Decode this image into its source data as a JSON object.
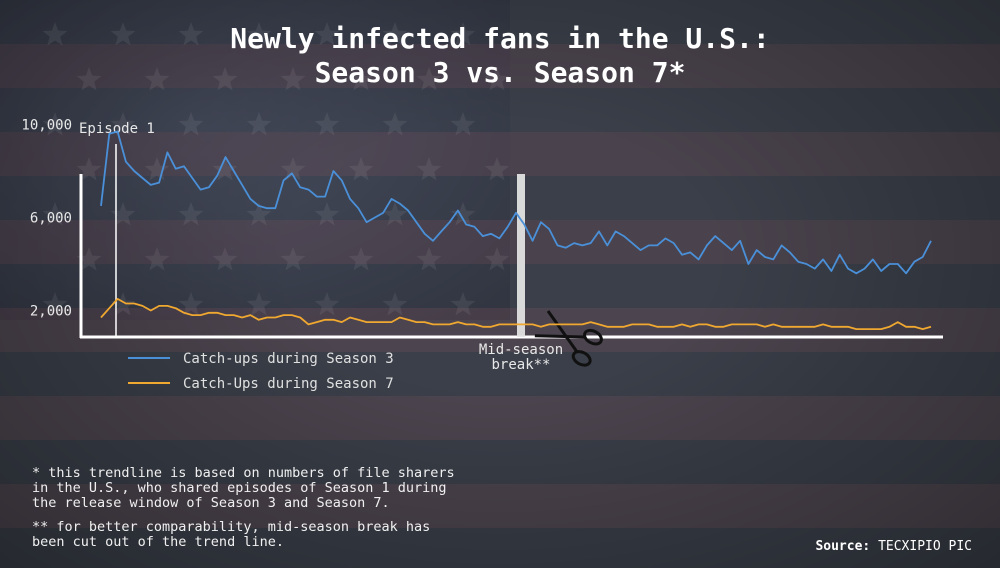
{
  "title_line1": "Newly infected fans in the U.S.:",
  "title_line2": "Season 3 vs. Season 7*",
  "chart_data": {
    "type": "line",
    "y_ticks": [
      "10,000",
      "6,000",
      "2,000"
    ],
    "y_tick_values": [
      10000,
      6000,
      2000
    ],
    "ylim": [
      0,
      14000
    ],
    "annotations": {
      "episode_1": "Episode 1",
      "mid_season_line1": "Mid-season",
      "mid_season_line2": "break**"
    },
    "series": [
      {
        "name": "Catch-ups during Season 3",
        "color": "#4a90d9",
        "values": [
          6500,
          9600,
          9700,
          8400,
          8000,
          7700,
          7400,
          7500,
          8800,
          8100,
          8200,
          7700,
          7200,
          7300,
          7800,
          8600,
          8000,
          7400,
          6800,
          6500,
          6400,
          6400,
          7600,
          7900,
          7300,
          7200,
          6900,
          6900,
          8000,
          7600,
          6800,
          6400,
          5800,
          6000,
          6200,
          6800,
          6600,
          6300,
          5800,
          5300,
          5000,
          5400,
          5800,
          6300,
          5700,
          5600,
          5200,
          5300,
          5100,
          5600,
          6200,
          5700,
          5000,
          5800,
          5500,
          4800,
          4700,
          4900,
          4800,
          4900,
          5400,
          4800,
          5400,
          5200,
          4900,
          4600,
          4800,
          4800,
          5100,
          4900,
          4400,
          4500,
          4200,
          4800,
          5200,
          4900,
          4600,
          5000,
          4000,
          4600,
          4300,
          4200,
          4800,
          4500,
          4100,
          4000,
          3800,
          4200,
          3700,
          4400,
          3800,
          3600,
          3800,
          4200,
          3700,
          4000,
          4000,
          3600,
          4100,
          4300,
          5000
        ]
      },
      {
        "name": "Catch-Ups during Season 7",
        "color": "#f0a830",
        "values": [
          1700,
          2100,
          2500,
          2300,
          2300,
          2200,
          2000,
          2200,
          2200,
          2100,
          1900,
          1800,
          1800,
          1900,
          1900,
          1800,
          1800,
          1700,
          1800,
          1600,
          1700,
          1700,
          1800,
          1800,
          1700,
          1400,
          1500,
          1600,
          1600,
          1500,
          1700,
          1600,
          1500,
          1500,
          1500,
          1500,
          1700,
          1600,
          1500,
          1500,
          1400,
          1400,
          1400,
          1500,
          1400,
          1400,
          1300,
          1300,
          1400,
          1400,
          1400,
          1400,
          1400,
          1300,
          1400,
          1400,
          1400,
          1400,
          1400,
          1500,
          1400,
          1300,
          1300,
          1300,
          1400,
          1400,
          1400,
          1300,
          1300,
          1300,
          1400,
          1300,
          1400,
          1400,
          1300,
          1300,
          1400,
          1400,
          1400,
          1400,
          1300,
          1400,
          1300,
          1300,
          1300,
          1300,
          1300,
          1400,
          1300,
          1300,
          1300,
          1200,
          1200,
          1200,
          1200,
          1300,
          1500,
          1300,
          1300,
          1200,
          1300
        ]
      }
    ],
    "legend_placement": "bottom-left",
    "grid": false
  },
  "footnote_1": "* this trendline is based on numbers of file sharers\nin the U.S., who shared episodes of Season 1 during\nthe release window of Season 3 and Season 7.",
  "footnote_2": "** for better comparability, mid-season break has\nbeen cut out of the trend line.",
  "source_label": "Source:",
  "source_value": "TECXIPIO PIC",
  "colors": {
    "axis": "#ffffff",
    "season3": "#4a90d9",
    "season7": "#f0a830"
  }
}
